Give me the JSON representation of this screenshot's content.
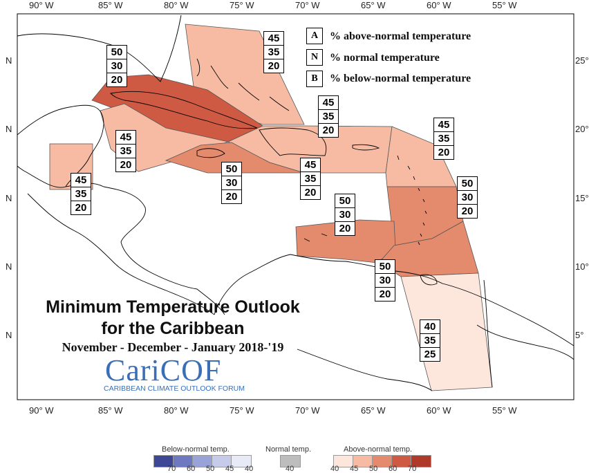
{
  "title_line1": "Minimum Temperature Outlook",
  "title_line2": "for the Caribbean",
  "period": "November - December - January 2018-'19",
  "logo": {
    "name": "CariCOF",
    "subtitle": "CARIBBEAN CLIMATE OUTLOOK FORUM"
  },
  "legend": {
    "A": {
      "letter": "A",
      "text": "% above-normal temperature"
    },
    "N": {
      "letter": "N",
      "text": "% normal temperature"
    },
    "B": {
      "letter": "B",
      "text": "% below-normal temperature"
    }
  },
  "x_ticks": [
    "90° W",
    "85° W",
    "80° W",
    "75° W",
    "70° W",
    "65° W",
    "60° W",
    "55° W"
  ],
  "y_ticks_left": [
    "N",
    "N",
    "N",
    "N",
    "N"
  ],
  "y_ticks_right": [
    "25°",
    "20°",
    "15°",
    "10°",
    "5°"
  ],
  "colors": {
    "above_40": "#fde6dc",
    "above_45": "#f7bba3",
    "above_50": "#e48b6e",
    "above_60": "#cf5a44",
    "above_70": "#b03a2a",
    "normal": "#bdbdbd",
    "below_40": "#e8ebf7",
    "below_45": "#c6cbea",
    "below_50": "#9aa3d8",
    "below_60": "#6f79c2",
    "below_70": "#3d4795",
    "region_border": "#555555",
    "coast": "#000000"
  },
  "forecast_boxes": {
    "bahamas": {
      "A": "45",
      "N": "35",
      "B": "20"
    },
    "cuba": {
      "A": "50",
      "N": "30",
      "B": "20"
    },
    "cayman": {
      "A": "45",
      "N": "35",
      "B": "20"
    },
    "hispaniola_north": {
      "A": "45",
      "N": "35",
      "B": "20"
    },
    "jamaica": {
      "A": "50",
      "N": "30",
      "B": "20"
    },
    "hispaniola_south": {
      "A": "45",
      "N": "35",
      "B": "20"
    },
    "belize": {
      "A": "45",
      "N": "35",
      "B": "20"
    },
    "leeward": {
      "A": "45",
      "N": "35",
      "B": "20"
    },
    "windward": {
      "A": "50",
      "N": "30",
      "B": "20"
    },
    "abc": {
      "A": "50",
      "N": "30",
      "B": "20"
    },
    "trinidad": {
      "A": "50",
      "N": "30",
      "B": "20"
    },
    "guianas": {
      "A": "40",
      "N": "35",
      "B": "25"
    }
  },
  "colorbar": {
    "below_title": "Below-normal temp.",
    "normal_title": "Normal temp.",
    "above_title": "Above-normal temp.",
    "below_ticks": [
      "70",
      "60",
      "50",
      "45",
      "40"
    ],
    "normal_ticks": [
      "40"
    ],
    "above_ticks": [
      "40",
      "45",
      "50",
      "60",
      "70"
    ]
  }
}
